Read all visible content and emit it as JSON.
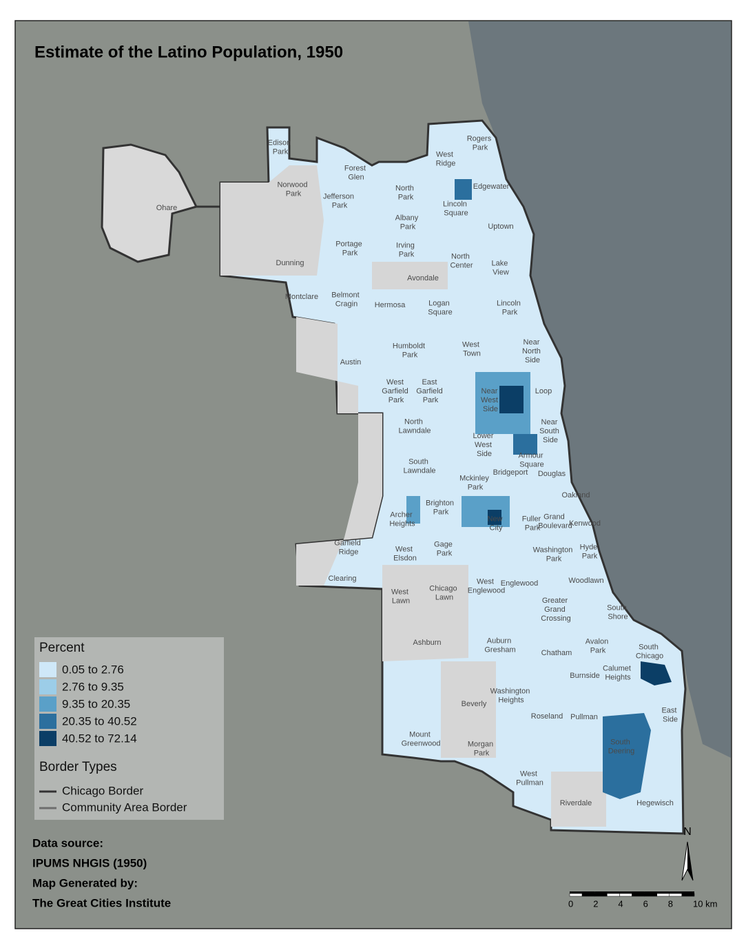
{
  "title": "Estimate of the Latino Population, 1950",
  "legend": {
    "title": "Percent",
    "classes": [
      {
        "label": "0.05 to 2.76",
        "color": "#cfe8f8"
      },
      {
        "label": "2.76 to 9.35",
        "color": "#9ccde8"
      },
      {
        "label": "9.35 to 20.35",
        "color": "#5aa0c8"
      },
      {
        "label": "20.35 to 40.52",
        "color": "#2b6f9e"
      },
      {
        "label": "40.52 to 72.14",
        "color": "#0b3e66"
      }
    ]
  },
  "border_types": {
    "title": "Border Types",
    "items": [
      {
        "label": "Chicago Border",
        "color": "#333333"
      },
      {
        "label": "Community Area Border",
        "color": "#6e6e6e"
      }
    ]
  },
  "credits": [
    "Data source:",
    "IPUMS NHGIS (1950)",
    "Map Generated by:",
    "The Great Cities Institute"
  ],
  "north_arrow": "N",
  "scale_bar": {
    "ticks": [
      0,
      2,
      4,
      6,
      8,
      {
        "value": 10,
        "label": "10 km"
      }
    ]
  },
  "areas": [
    "Edison Park",
    "Rogers Park",
    "West Ridge",
    "Forest Glen",
    "Norwood Park",
    "Jefferson Park",
    "North Park",
    "Edgewater",
    "Lincoln Square",
    "Albany Park",
    "Ohare",
    "Uptown",
    "Portage Park",
    "Irving Park",
    "North Center",
    "Dunning",
    "Lake View",
    "Avondale",
    "Montclare",
    "Belmont Cragin",
    "Hermosa",
    "Logan Square",
    "Lincoln Park",
    "Humboldt Park",
    "West Town",
    "Near North Side",
    "Austin",
    "West Garfield Park",
    "East Garfield Park",
    "Near West Side",
    "Loop",
    "North Lawndale",
    "Near South Side",
    "Lower West Side",
    "Armour Square",
    "South Lawndale",
    "Bridgeport",
    "Douglas",
    "Mckinley Park",
    "Oakland",
    "Brighton Park",
    "Archer Heights",
    "New City",
    "Fuller Park",
    "Grand Boulevard",
    "Kenwood",
    "Garfield Ridge",
    "Gage Park",
    "West Elsdon",
    "Washington Park",
    "Hyde Park",
    "Clearing",
    "Woodlawn",
    "West Englewood",
    "Englewood",
    "Chicago Lawn",
    "West Lawn",
    "Greater Grand Crossing",
    "South Shore",
    "Ashburn",
    "Auburn Gresham",
    "Chatham",
    "Avalon Park",
    "South Chicago",
    "Calumet Heights",
    "Burnside",
    "Washington Heights",
    "Beverly",
    "East Side",
    "Roseland",
    "Pullman",
    "South Deering",
    "Mount Greenwood",
    "Morgan Park",
    "West Pullman",
    "Riverdale",
    "Hegewisch"
  ]
}
